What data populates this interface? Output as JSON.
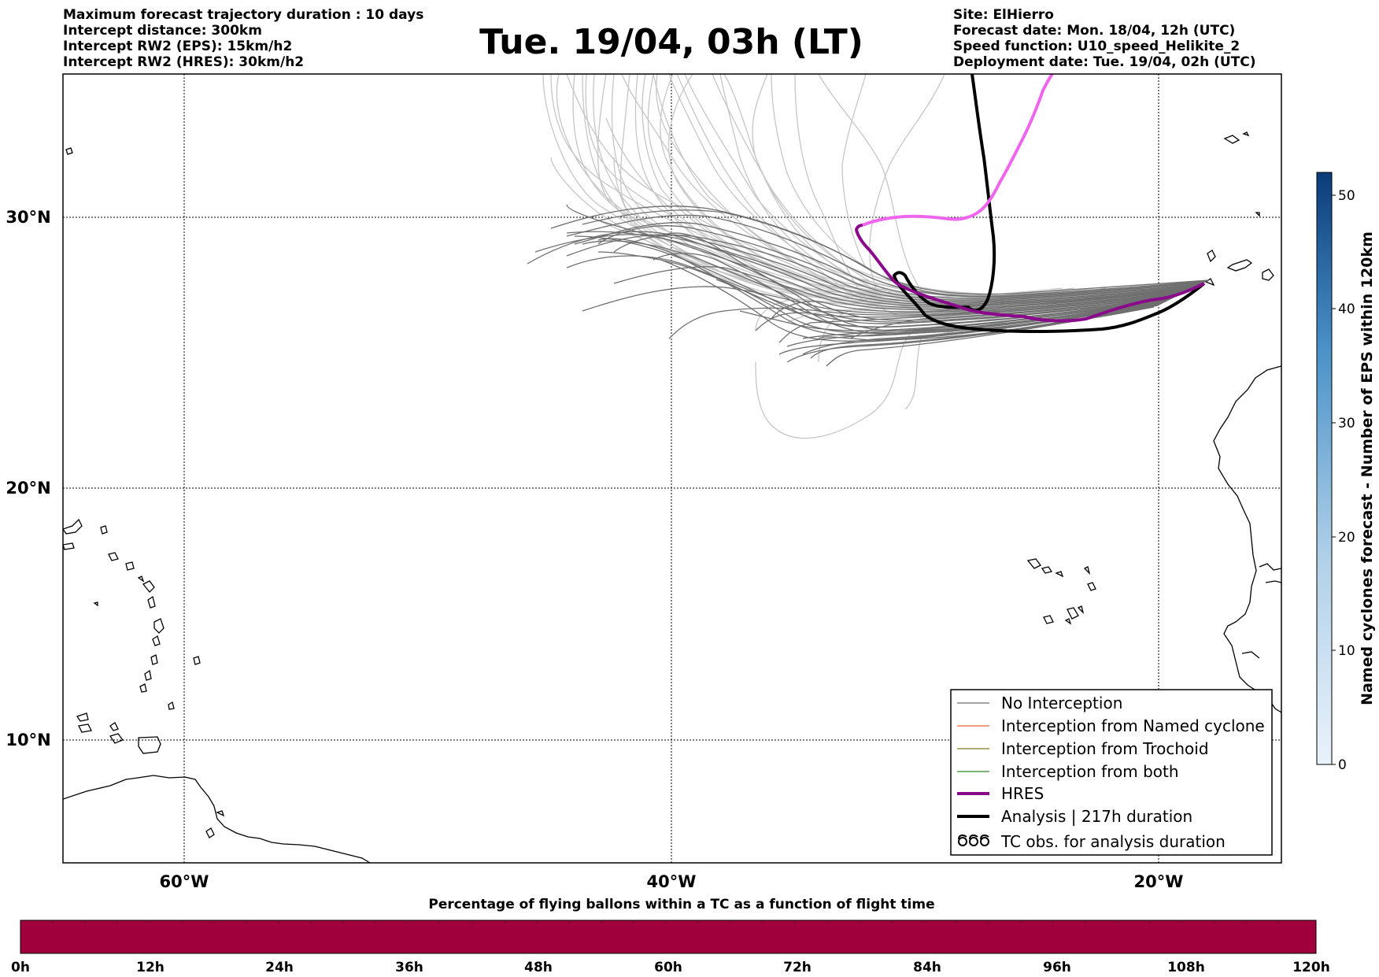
{
  "header": {
    "left": [
      "Maximum forecast trajectory duration : 10 days",
      "Intercept distance: 300km",
      "Intercept RW2 (EPS):  15km/h2",
      "Intercept RW2 (HRES): 30km/h2"
    ],
    "title": "Tue. 19/04, 03h (LT)",
    "right": [
      "Site: ElHierro",
      "Forecast date: Mon. 18/04, 12h (UTC)",
      "Speed function: U10_speed_Helikite_2",
      "Deployment date: Tue. 19/04, 02h (UTC)"
    ]
  },
  "map": {
    "lon_range": [
      -65,
      15
    ],
    "lat_range": [
      5,
      35
    ],
    "lat_labels": [
      "30°N",
      "20°N",
      "10°N"
    ],
    "lon_labels": [
      "60°W",
      "40°W",
      "20°W"
    ]
  },
  "legend": {
    "items": [
      {
        "label": "No Interception",
        "color": "#6e6e6e"
      },
      {
        "label": "Interception from Named cyclone",
        "color": "#e8642e"
      },
      {
        "label": "Interception from Trochoid",
        "color": "#7a7a1e"
      },
      {
        "label": "Interception from both",
        "color": "#2a8a2a"
      },
      {
        "label": "HRES",
        "color": "#8b0a8b"
      },
      {
        "label": "Analysis | 217h duration",
        "color": "#000000"
      },
      {
        "label": "TC obs. for analysis duration",
        "color": "#000000",
        "icon": "cyclone-symbols-icon"
      }
    ]
  },
  "colorbar_right": {
    "label": "Named cyclones forecast - Number of EPS within 120km",
    "ticks": [
      "0",
      "10",
      "20",
      "30",
      "40",
      "50"
    ],
    "range": [
      0,
      52
    ]
  },
  "colorbar_bottom": {
    "title": "Percentage of flying ballons within a TC as a function of flight time",
    "ticks": [
      "0h",
      "12h",
      "24h",
      "36h",
      "48h",
      "60h",
      "72h",
      "84h",
      "96h",
      "108h",
      "120h"
    ],
    "fill_color": "#a0003c"
  }
}
